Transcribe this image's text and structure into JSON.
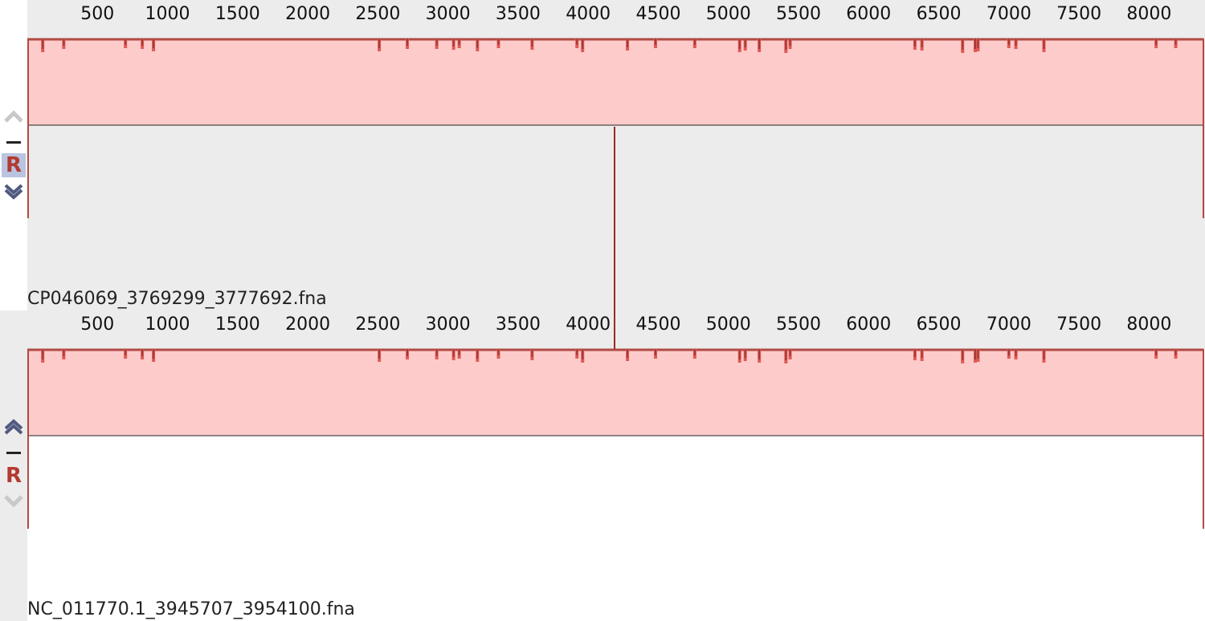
{
  "ruler": {
    "ticks": [
      "500",
      "1000",
      "1500",
      "2000",
      "2500",
      "3000",
      "3500",
      "4000",
      "4500",
      "5000",
      "5500",
      "6000",
      "6500",
      "7000",
      "7500",
      "8000"
    ]
  },
  "panels": [
    {
      "sequence_name": "CP046069_3769299_3777692.fna",
      "r_label": "R",
      "r_active": true
    },
    {
      "sequence_name": "NC_011770.1_3945707_3954100.fna",
      "r_label": "R",
      "r_active": false
    }
  ],
  "colors": {
    "block_fill": "#fecbcb",
    "block_border": "#b04a44",
    "dip_color": "#e05a55",
    "dip_dark": "#a03a35",
    "cursor": "#9b2a22"
  },
  "icons": {
    "up": "chevron-up-icon",
    "minus": "minus-icon",
    "down": "chevron-down-icon"
  }
}
